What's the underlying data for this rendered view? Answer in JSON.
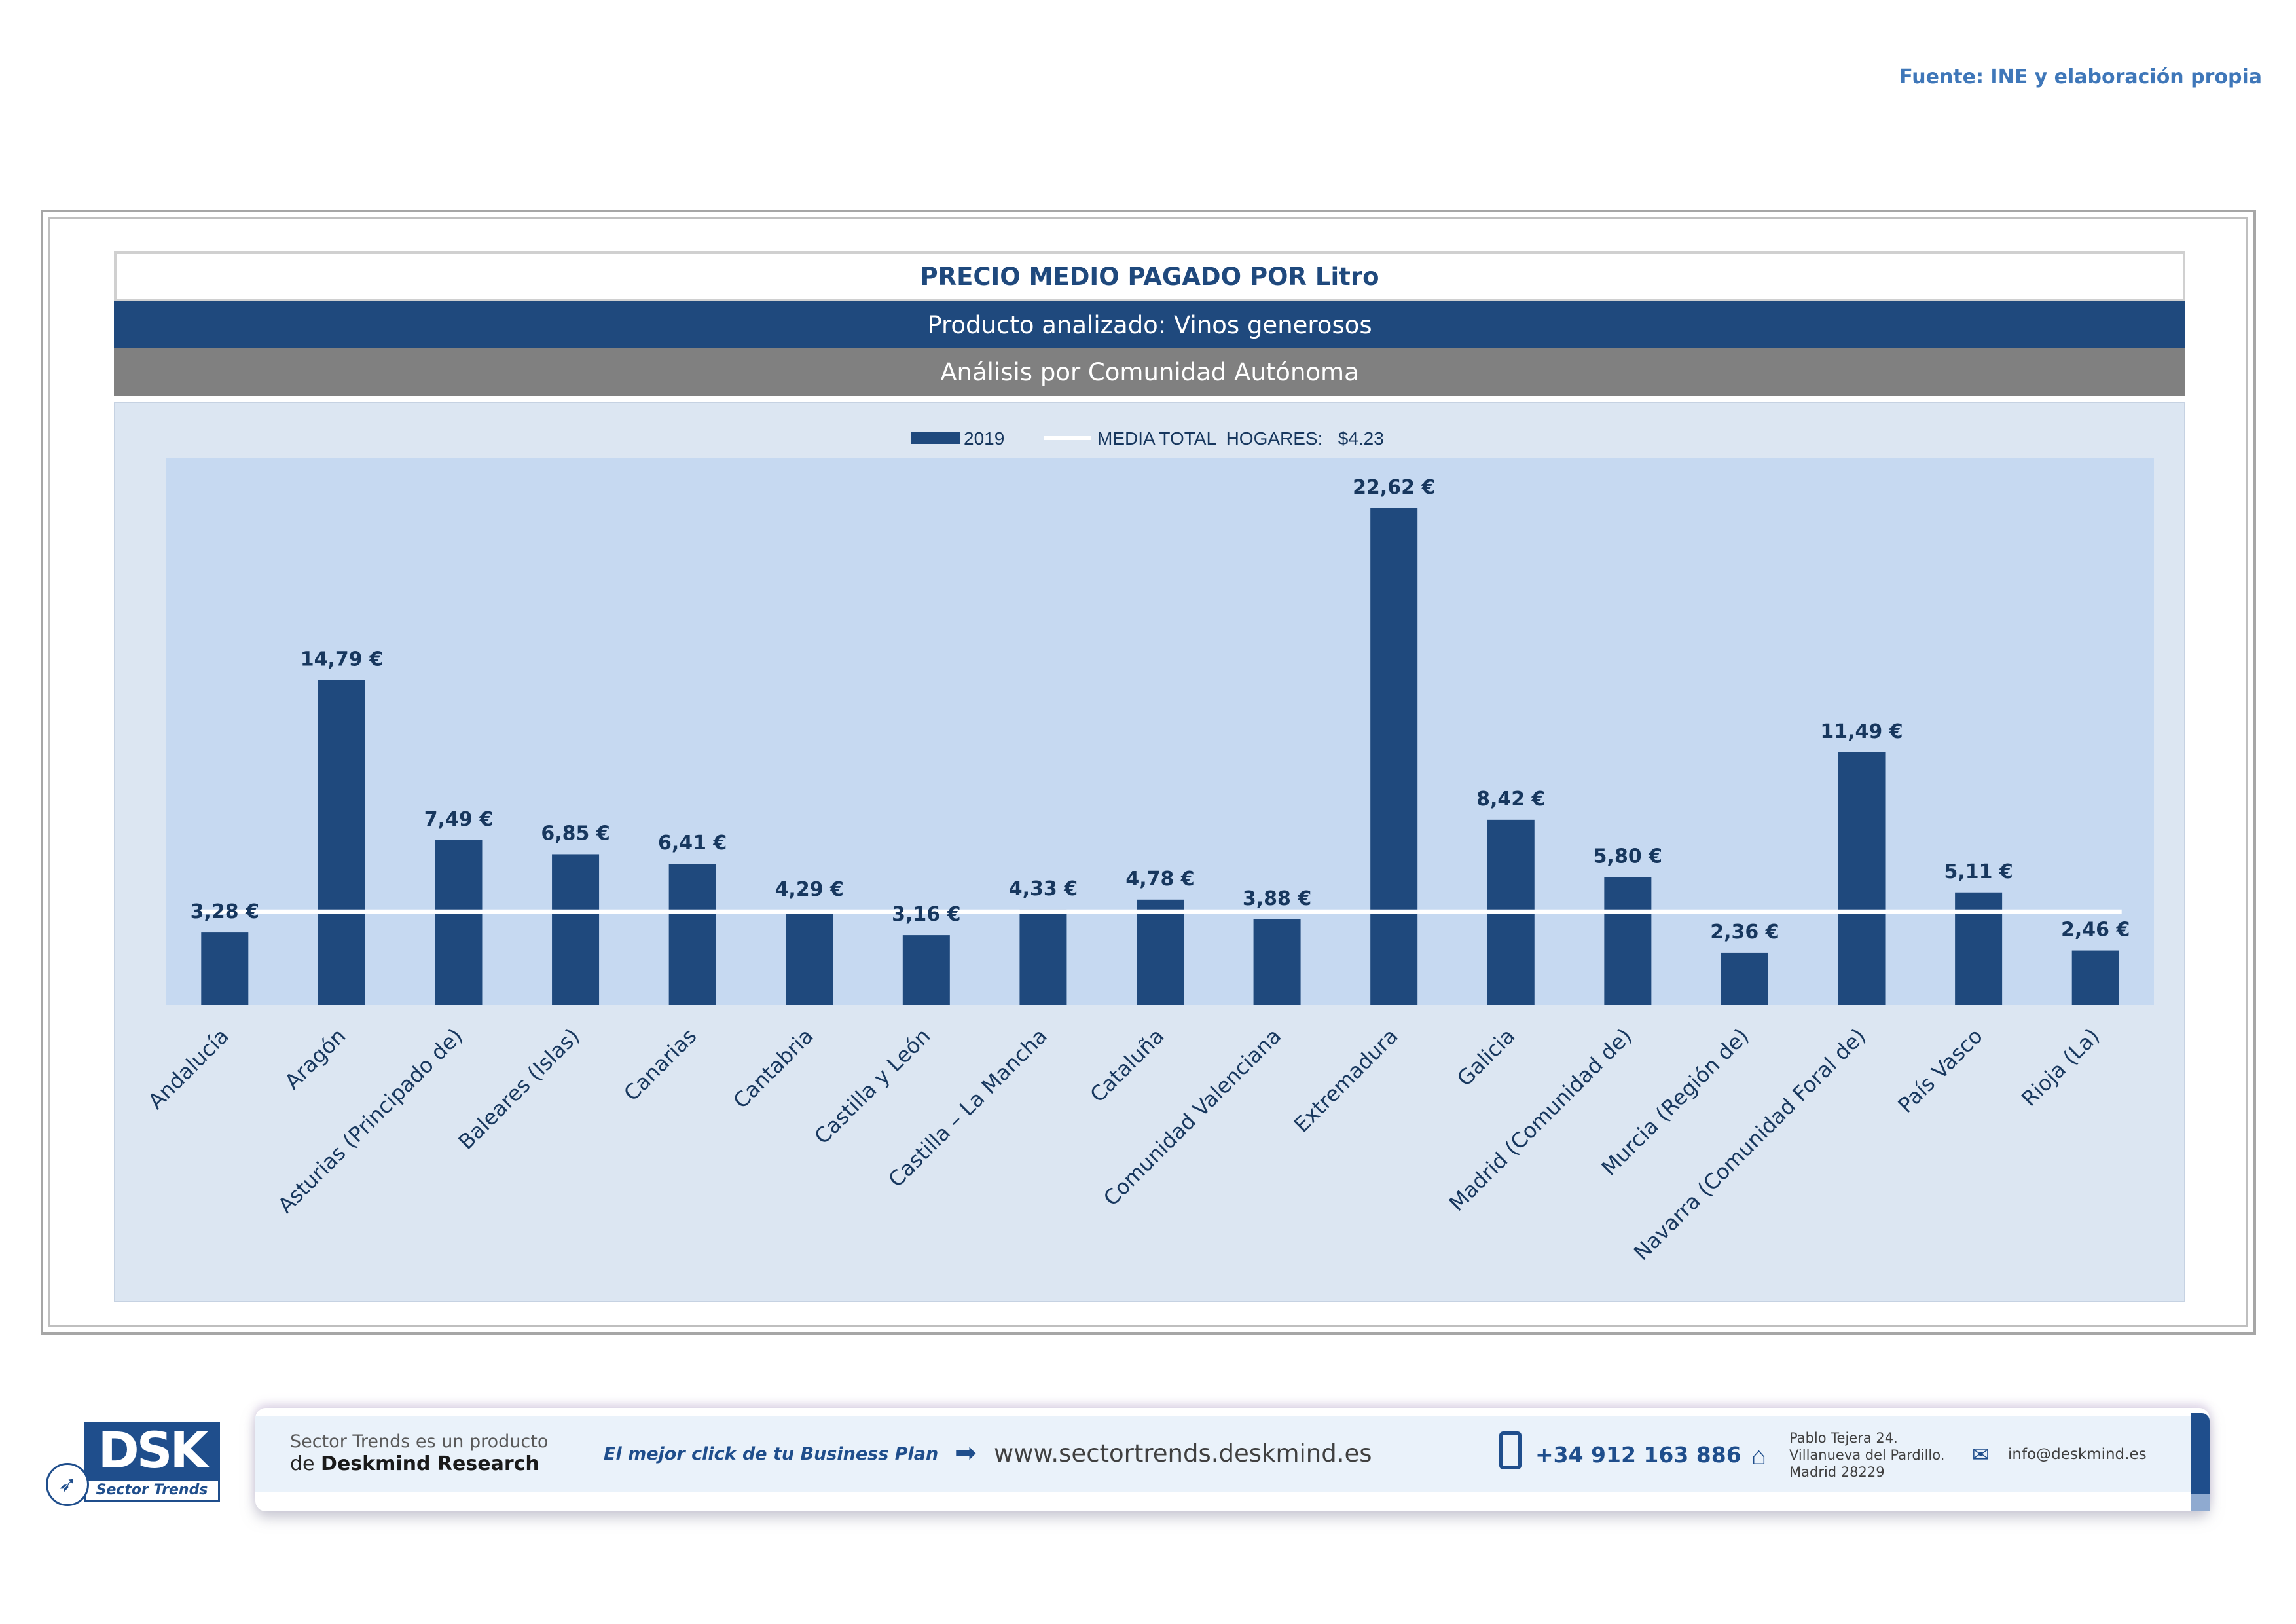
{
  "source": "Fuente: INE y elaboración propia",
  "header": {
    "title": "PRECIO MEDIO PAGADO POR Litro",
    "product": "Producto analizado: Vinos generosos",
    "analysis": "Análisis por Comunidad Autónoma"
  },
  "legend": {
    "series_label": "2019",
    "average_label": "MEDIA TOTAL  HOGARES:   $4.23"
  },
  "colors": {
    "bar": "#1f497d",
    "plot_background": "#c6d9f1",
    "chart_background": "#dce6f2",
    "average_line": "#ffffff",
    "label_text": "#17375e"
  },
  "chart_data": {
    "type": "bar",
    "categories": [
      "Andalucía",
      "Aragón",
      "Asturias (Principado de)",
      "Baleares (Islas)",
      "Canarias",
      "Cantabria",
      "Castilla y León",
      "Castilla – La Mancha",
      "Cataluña",
      "Comunidad Valenciana",
      "Extremadura",
      "Galicia",
      "Madrid (Comunidad de)",
      "Murcia (Región de)",
      "Navarra (Comunidad Foral de)",
      "País Vasco",
      "Rioja (La)"
    ],
    "series": [
      {
        "name": "2019",
        "values": [
          3.28,
          14.79,
          7.49,
          6.85,
          6.41,
          4.29,
          3.16,
          4.33,
          4.78,
          3.88,
          22.62,
          8.42,
          5.8,
          2.36,
          11.49,
          5.11,
          2.46
        ],
        "labels": [
          "3,28 €",
          "14,79 €",
          "7,49 €",
          "6,85 €",
          "6,41 €",
          "4,29 €",
          "3,16 €",
          "4,33 €",
          "4,78 €",
          "3,88 €",
          "22,62 €",
          "8,42 €",
          "5,80 €",
          "2,36 €",
          "11,49 €",
          "5,11 €",
          "2,46 €"
        ]
      }
    ],
    "average": {
      "name": "MEDIA TOTAL  HOGARES",
      "value": 4.23
    },
    "ylim": [
      0,
      25
    ],
    "grid": false,
    "legend_position": "top"
  },
  "footer": {
    "product_line1": "Sector Trends es un producto",
    "product_line2_prefix": "de",
    "product_line2_brand": "Deskmind Research",
    "slogan": "El mejor click de tu Business Plan",
    "website": "www.sectortrends.deskmind.es",
    "phone": "+34 912 163 886",
    "address_line1": "Pablo Tejera 24.",
    "address_line2": "Villanueva del Pardillo.",
    "address_line3": "Madrid 28229",
    "email": "info@deskmind.es",
    "logo_text": "DSK",
    "logo_subtitle": "Sector Trends"
  }
}
